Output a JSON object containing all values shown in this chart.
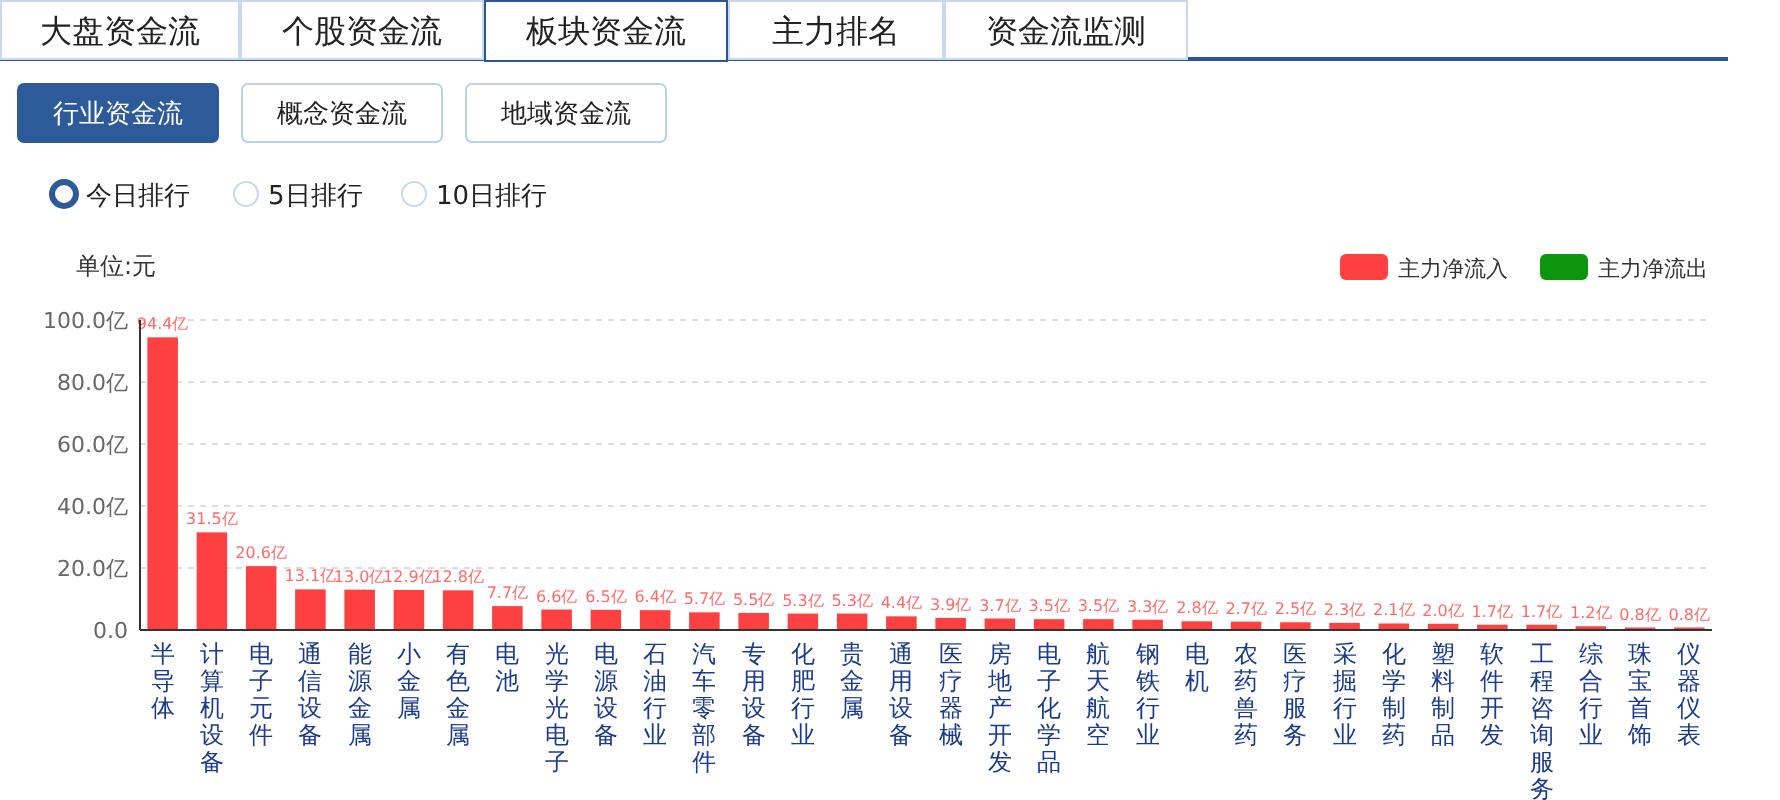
{
  "chart_data": {
    "type": "bar",
    "ylabel": "单位:元",
    "annotations": [
      "大盘资金流",
      "个股资金流",
      "板块资金流",
      "主力排名",
      "资金流监测",
      "行业资金流",
      "概念资金流",
      "地域资金流",
      "今日排行",
      "5日排行",
      "10日排行"
    ],
    "categories": [
      "半导体",
      "计算机设备",
      "电子元件",
      "通信设备",
      "能源金属",
      "小金属",
      "有色金属",
      "电池",
      "光学光电子",
      "电源设备",
      "石油行业",
      "汽车零部件",
      "专用设备",
      "化肥行业",
      "贵金属",
      "通用设备",
      "医疗器械",
      "房地产开发",
      "电子化学品",
      "航天航空",
      "钢铁行业",
      "电机",
      "农药兽药",
      "医疗服务",
      "采掘行业",
      "化学制药",
      "塑料制品",
      "软件开发",
      "工程咨询服务",
      "综合行业",
      "珠宝首饰",
      "仪器仪表"
    ],
    "series": [
      {
        "name": "主力净流入",
        "color": "#ff4040",
        "values": [
          94.4,
          31.5,
          20.6,
          13.1,
          13.0,
          12.9,
          12.8,
          7.7,
          6.6,
          6.5,
          6.4,
          5.7,
          5.5,
          5.3,
          5.3,
          4.4,
          3.9,
          3.7,
          3.5,
          3.5,
          3.3,
          2.8,
          2.7,
          2.5,
          2.3,
          2.1,
          2.0,
          1.7,
          1.7,
          1.2,
          0.8,
          0.8
        ],
        "value_labels": [
          "94.4亿",
          "31.5亿",
          "20.6亿",
          "13.1亿",
          "13.0亿",
          "12.9亿",
          "12.8亿",
          "7.7亿",
          "6.6亿",
          "6.5亿",
          "6.4亿",
          "5.7亿",
          "5.5亿",
          "5.3亿",
          "5.3亿",
          "4.4亿",
          "3.9亿",
          "3.7亿",
          "3.5亿",
          "3.5亿",
          "3.3亿",
          "2.8亿",
          "2.7亿",
          "2.5亿",
          "2.3亿",
          "2.1亿",
          "2.0亿",
          "1.7亿",
          "1.7亿",
          "1.2亿",
          "0.8亿",
          "0.8亿"
        ]
      },
      {
        "name": "主力净流出",
        "color": "#0d960d",
        "values": [
          null,
          null,
          null,
          null,
          null,
          null,
          null,
          null,
          null,
          null,
          null,
          null,
          null,
          null,
          null,
          null,
          null,
          null,
          null,
          null,
          null,
          null,
          null,
          null,
          null,
          null,
          null,
          null,
          null,
          null,
          null,
          null
        ]
      }
    ],
    "ylim": [
      0,
      100
    ],
    "yticks": [
      {
        "value": 0,
        "label": "0.0"
      },
      {
        "value": 20,
        "label": "20.0亿"
      },
      {
        "value": 40,
        "label": "40.0亿"
      },
      {
        "value": 60,
        "label": "60.0亿"
      },
      {
        "value": 80,
        "label": "80.0亿"
      },
      {
        "value": 100,
        "label": "100.0亿"
      }
    ],
    "grid": "y",
    "legend": "top right"
  }
}
